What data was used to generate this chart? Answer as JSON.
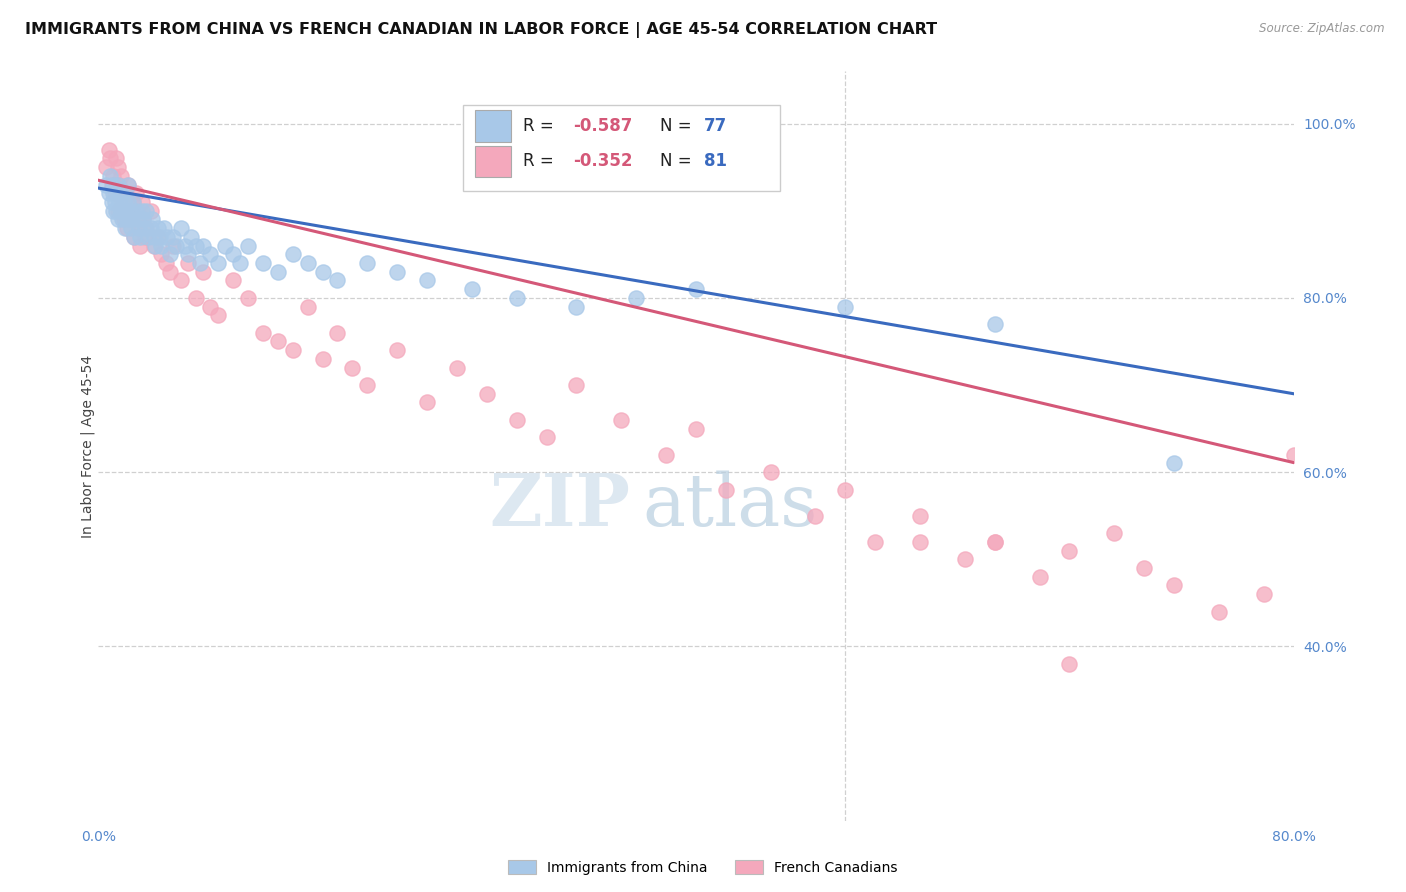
{
  "title": "IMMIGRANTS FROM CHINA VS FRENCH CANADIAN IN LABOR FORCE | AGE 45-54 CORRELATION CHART",
  "source": "Source: ZipAtlas.com",
  "ylabel": "In Labor Force | Age 45-54",
  "xlim": [
    0.0,
    0.8
  ],
  "ylim": [
    0.2,
    1.06
  ],
  "yticks_right": [
    0.4,
    0.6,
    0.8,
    1.0
  ],
  "yticklabels_right": [
    "40.0%",
    "60.0%",
    "80.0%",
    "100.0%"
  ],
  "china_color": "#a8c8e8",
  "french_color": "#f4a8bc",
  "china_line_color": "#3a6abf",
  "french_line_color": "#d45878",
  "watermark_zip": "ZIP",
  "watermark_atlas": "atlas",
  "background_color": "#ffffff",
  "grid_color": "#d0d0d0",
  "tick_color": "#5588cc",
  "title_fontsize": 11.5,
  "axis_label_fontsize": 10,
  "tick_fontsize": 10,
  "china_x": [
    0.005,
    0.007,
    0.008,
    0.009,
    0.01,
    0.01,
    0.01,
    0.011,
    0.012,
    0.013,
    0.013,
    0.014,
    0.015,
    0.015,
    0.016,
    0.017,
    0.018,
    0.018,
    0.019,
    0.02,
    0.02,
    0.021,
    0.022,
    0.022,
    0.023,
    0.024,
    0.025,
    0.026,
    0.027,
    0.028,
    0.029,
    0.03,
    0.031,
    0.032,
    0.033,
    0.035,
    0.036,
    0.037,
    0.038,
    0.04,
    0.041,
    0.042,
    0.044,
    0.046,
    0.048,
    0.05,
    0.052,
    0.055,
    0.058,
    0.06,
    0.062,
    0.065,
    0.068,
    0.07,
    0.075,
    0.08,
    0.085,
    0.09,
    0.095,
    0.1,
    0.11,
    0.12,
    0.13,
    0.14,
    0.15,
    0.16,
    0.18,
    0.2,
    0.22,
    0.25,
    0.28,
    0.32,
    0.36,
    0.4,
    0.5,
    0.6,
    0.72
  ],
  "china_y": [
    0.93,
    0.92,
    0.94,
    0.91,
    0.93,
    0.9,
    0.92,
    0.91,
    0.9,
    0.93,
    0.89,
    0.91,
    0.92,
    0.9,
    0.89,
    0.91,
    0.88,
    0.9,
    0.89,
    0.93,
    0.91,
    0.9,
    0.89,
    0.88,
    0.91,
    0.87,
    0.9,
    0.89,
    0.88,
    0.87,
    0.9,
    0.89,
    0.88,
    0.9,
    0.87,
    0.88,
    0.89,
    0.87,
    0.86,
    0.88,
    0.87,
    0.86,
    0.88,
    0.87,
    0.85,
    0.87,
    0.86,
    0.88,
    0.86,
    0.85,
    0.87,
    0.86,
    0.84,
    0.86,
    0.85,
    0.84,
    0.86,
    0.85,
    0.84,
    0.86,
    0.84,
    0.83,
    0.85,
    0.84,
    0.83,
    0.82,
    0.84,
    0.83,
    0.82,
    0.81,
    0.8,
    0.79,
    0.8,
    0.81,
    0.79,
    0.77,
    0.61
  ],
  "french_x": [
    0.005,
    0.007,
    0.008,
    0.009,
    0.01,
    0.011,
    0.012,
    0.013,
    0.013,
    0.014,
    0.015,
    0.016,
    0.017,
    0.018,
    0.019,
    0.02,
    0.02,
    0.021,
    0.022,
    0.023,
    0.024,
    0.025,
    0.026,
    0.027,
    0.028,
    0.029,
    0.03,
    0.031,
    0.032,
    0.035,
    0.037,
    0.04,
    0.042,
    0.045,
    0.048,
    0.05,
    0.055,
    0.06,
    0.065,
    0.07,
    0.075,
    0.08,
    0.09,
    0.1,
    0.11,
    0.12,
    0.13,
    0.14,
    0.15,
    0.16,
    0.17,
    0.18,
    0.2,
    0.22,
    0.24,
    0.26,
    0.28,
    0.3,
    0.32,
    0.35,
    0.38,
    0.4,
    0.42,
    0.45,
    0.48,
    0.5,
    0.52,
    0.55,
    0.58,
    0.6,
    0.63,
    0.65,
    0.68,
    0.7,
    0.72,
    0.75,
    0.78,
    0.8,
    0.55,
    0.6,
    0.65
  ],
  "french_y": [
    0.95,
    0.97,
    0.96,
    0.93,
    0.94,
    0.92,
    0.96,
    0.95,
    0.9,
    0.93,
    0.94,
    0.91,
    0.89,
    0.92,
    0.88,
    0.93,
    0.91,
    0.9,
    0.89,
    0.91,
    0.87,
    0.92,
    0.9,
    0.88,
    0.86,
    0.91,
    0.89,
    0.87,
    0.88,
    0.9,
    0.86,
    0.87,
    0.85,
    0.84,
    0.83,
    0.86,
    0.82,
    0.84,
    0.8,
    0.83,
    0.79,
    0.78,
    0.82,
    0.8,
    0.76,
    0.75,
    0.74,
    0.79,
    0.73,
    0.76,
    0.72,
    0.7,
    0.74,
    0.68,
    0.72,
    0.69,
    0.66,
    0.64,
    0.7,
    0.66,
    0.62,
    0.65,
    0.58,
    0.6,
    0.55,
    0.58,
    0.52,
    0.55,
    0.5,
    0.52,
    0.48,
    0.51,
    0.53,
    0.49,
    0.47,
    0.44,
    0.46,
    0.62,
    0.52,
    0.52,
    0.38
  ]
}
